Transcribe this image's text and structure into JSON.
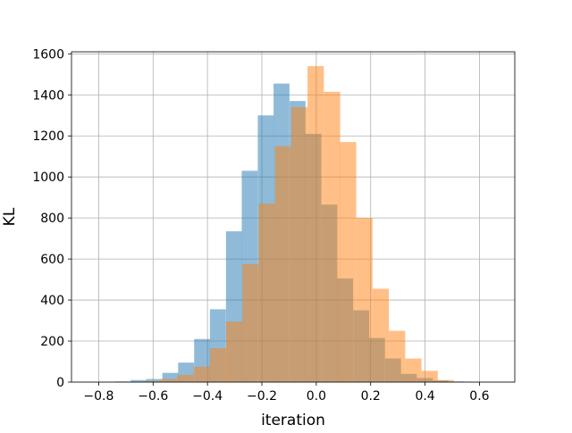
{
  "chart_data": {
    "type": "bar",
    "subtype": "overlaid-histogram",
    "title": "",
    "xlabel": "iteration",
    "ylabel": "KL",
    "xlim": [
      -0.9,
      0.73
    ],
    "ylim": [
      0,
      1610
    ],
    "xticks": [
      -0.8,
      -0.6,
      -0.4,
      -0.2,
      0.0,
      0.2,
      0.4,
      0.6
    ],
    "xtick_labels": [
      "−0.8",
      "−0.6",
      "−0.4",
      "−0.2",
      "0.0",
      "0.2",
      "0.4",
      "0.6"
    ],
    "yticks": [
      0,
      200,
      400,
      600,
      800,
      1000,
      1200,
      1400,
      1600
    ],
    "ytick_labels": [
      "0",
      "200",
      "400",
      "600",
      "800",
      "1000",
      "1200",
      "1400",
      "1600"
    ],
    "grid": true,
    "legend": "none",
    "series": [
      {
        "color": "#1f77b4",
        "opacity": 0.5,
        "bin_width": 0.0585,
        "bin_starts": [
          -0.742,
          -0.683,
          -0.625,
          -0.566,
          -0.508,
          -0.449,
          -0.391,
          -0.332,
          -0.274,
          -0.215,
          -0.157,
          -0.098,
          -0.04,
          0.019,
          0.077,
          0.136,
          0.194,
          0.253,
          0.311,
          0.37,
          0.428,
          0.487
        ],
        "values": [
          3,
          10,
          15,
          45,
          95,
          210,
          355,
          735,
          1030,
          1300,
          1455,
          1370,
          1210,
          865,
          505,
          350,
          215,
          115,
          40,
          20,
          8,
          3
        ]
      },
      {
        "color": "#ff7f0e",
        "opacity": 0.5,
        "bin_width": 0.0598,
        "bin_starts": [
          -0.631,
          -0.571,
          -0.511,
          -0.451,
          -0.391,
          -0.332,
          -0.272,
          -0.212,
          -0.152,
          -0.092,
          -0.032,
          0.028,
          0.087,
          0.147,
          0.207,
          0.267,
          0.327,
          0.387,
          0.446
        ],
        "values": [
          5,
          15,
          35,
          75,
          165,
          295,
          575,
          870,
          1150,
          1340,
          1540,
          1415,
          1170,
          800,
          455,
          250,
          115,
          55,
          10
        ]
      }
    ]
  }
}
